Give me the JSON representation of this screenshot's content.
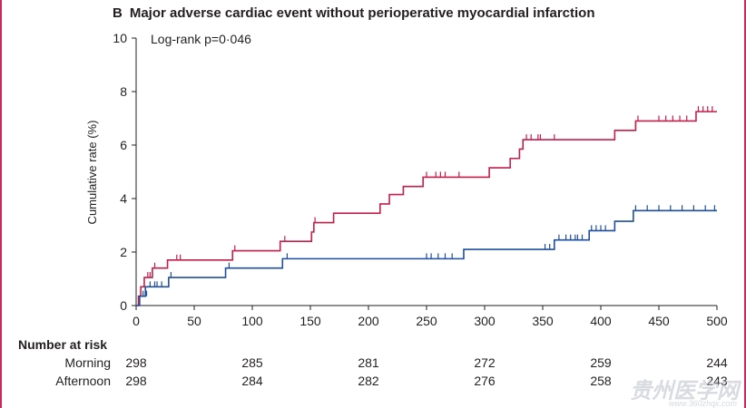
{
  "panel": {
    "letter": "B",
    "title": "Major adverse cardiac event without perioperative myocardial infarction"
  },
  "annotation": "Log-rank p=0·046",
  "risk_table": {
    "title": "Number at risk",
    "groups": [
      {
        "label": "Morning",
        "values": [
          "298",
          "285",
          "281",
          "272",
          "259",
          "244"
        ]
      },
      {
        "label": "Afternoon",
        "values": [
          "298",
          "284",
          "282",
          "276",
          "258",
          "243"
        ]
      }
    ]
  },
  "watermark": {
    "logo_text": "贵州医学网",
    "url": "www.360zhqx.com"
  },
  "colors": {
    "morning": "#c41e4a",
    "afternoon": "#1f4e9c",
    "axis": "#231f20",
    "frame": "#c8285a"
  },
  "chart_data": {
    "type": "line",
    "step": true,
    "title": "Major adverse cardiac event without perioperative myocardial infarction",
    "xlabel": "",
    "ylabel": "Cumulative rate (%)",
    "xlim": [
      0,
      500
    ],
    "ylim": [
      0,
      10
    ],
    "x_ticks": [
      0,
      50,
      100,
      150,
      200,
      250,
      300,
      350,
      400,
      450,
      500
    ],
    "y_ticks": [
      0,
      2,
      4,
      6,
      8,
      10
    ],
    "grid": false,
    "series": [
      {
        "color": "#c41e4a",
        "steps": [
          [
            0,
            0
          ],
          [
            2,
            0.35
          ],
          [
            4,
            0.7
          ],
          [
            7,
            1.05
          ],
          [
            14,
            1.4
          ],
          [
            27,
            1.7
          ],
          [
            83,
            2.05
          ],
          [
            124,
            2.4
          ],
          [
            151,
            2.75
          ],
          [
            153,
            3.1
          ],
          [
            170,
            3.45
          ],
          [
            210,
            3.8
          ],
          [
            218,
            4.15
          ],
          [
            230,
            4.45
          ],
          [
            247,
            4.8
          ],
          [
            304,
            5.15
          ],
          [
            322,
            5.5
          ],
          [
            330,
            5.85
          ],
          [
            333,
            6.2
          ],
          [
            412,
            6.55
          ],
          [
            430,
            6.9
          ],
          [
            482,
            7.25
          ],
          [
            500,
            7.25
          ]
        ],
        "censored": [
          [
            10,
            1.05
          ],
          [
            12,
            1.05
          ],
          [
            16,
            1.4
          ],
          [
            35,
            1.7
          ],
          [
            38,
            1.7
          ],
          [
            85,
            2.05
          ],
          [
            128,
            2.4
          ],
          [
            154,
            3.1
          ],
          [
            250,
            4.8
          ],
          [
            258,
            4.8
          ],
          [
            262,
            4.8
          ],
          [
            266,
            4.8
          ],
          [
            278,
            4.8
          ],
          [
            336,
            6.2
          ],
          [
            340,
            6.2
          ],
          [
            346,
            6.2
          ],
          [
            348,
            6.2
          ],
          [
            360,
            6.2
          ],
          [
            432,
            6.9
          ],
          [
            450,
            6.9
          ],
          [
            456,
            6.9
          ],
          [
            462,
            6.9
          ],
          [
            468,
            6.9
          ],
          [
            474,
            6.9
          ],
          [
            484,
            7.25
          ],
          [
            488,
            7.25
          ],
          [
            492,
            7.25
          ],
          [
            496,
            7.25
          ]
        ]
      },
      {
        "color": "#1f4e9c",
        "steps": [
          [
            0,
            0
          ],
          [
            3,
            0.35
          ],
          [
            8,
            0.7
          ],
          [
            28,
            1.05
          ],
          [
            77,
            1.4
          ],
          [
            126,
            1.75
          ],
          [
            282,
            2.1
          ],
          [
            360,
            2.45
          ],
          [
            390,
            2.8
          ],
          [
            412,
            3.15
          ],
          [
            428,
            3.55
          ],
          [
            500,
            3.55
          ]
        ],
        "censored": [
          [
            6,
            0.35
          ],
          [
            9,
            0.35
          ],
          [
            12,
            0.7
          ],
          [
            16,
            0.7
          ],
          [
            18,
            0.7
          ],
          [
            22,
            0.7
          ],
          [
            30,
            1.05
          ],
          [
            80,
            1.4
          ],
          [
            130,
            1.75
          ],
          [
            250,
            1.75
          ],
          [
            254,
            1.75
          ],
          [
            260,
            1.75
          ],
          [
            266,
            1.75
          ],
          [
            272,
            1.75
          ],
          [
            352,
            2.1
          ],
          [
            356,
            2.1
          ],
          [
            364,
            2.45
          ],
          [
            370,
            2.45
          ],
          [
            374,
            2.45
          ],
          [
            378,
            2.45
          ],
          [
            380,
            2.45
          ],
          [
            384,
            2.45
          ],
          [
            392,
            2.8
          ],
          [
            396,
            2.8
          ],
          [
            400,
            2.8
          ],
          [
            404,
            2.8
          ],
          [
            430,
            3.55
          ],
          [
            440,
            3.55
          ],
          [
            450,
            3.55
          ],
          [
            460,
            3.55
          ],
          [
            470,
            3.55
          ],
          [
            480,
            3.55
          ],
          [
            490,
            3.55
          ],
          [
            498,
            3.55
          ]
        ]
      }
    ]
  }
}
